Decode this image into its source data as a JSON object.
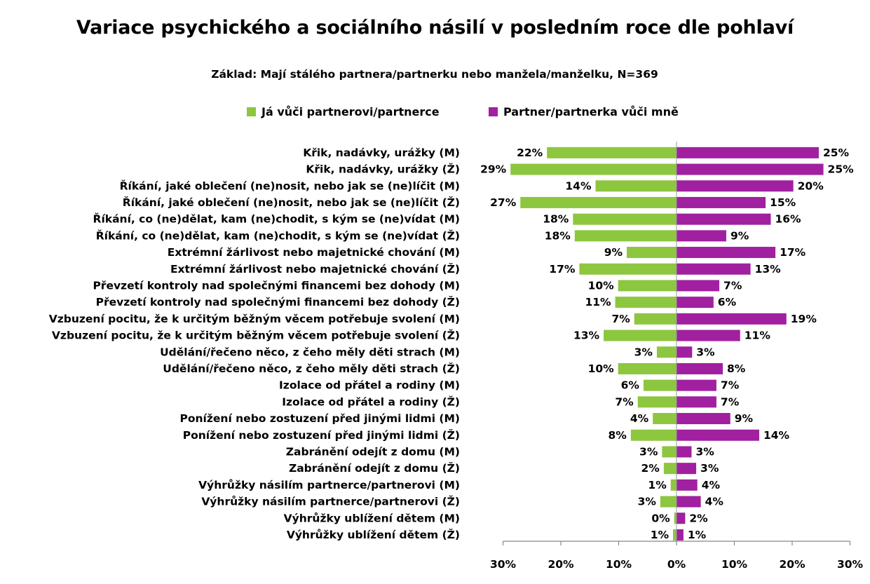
{
  "chart_data": {
    "type": "bar",
    "orientation": "horizontal-diverging",
    "title": "Variace psychického a sociálního násilí v posledním roce dle pohlaví",
    "subtitle": "Základ: Mají stálého partnera/partnerku nebo manžela/manželku, N=369",
    "xlim": [
      -30,
      30
    ],
    "xticks": [
      -30,
      -20,
      -10,
      0,
      10,
      20,
      30
    ],
    "xtick_labels": [
      "30%",
      "20%",
      "10%",
      "0%",
      "10%",
      "20%",
      "30%"
    ],
    "grid": false,
    "legend_position": "top",
    "categories": [
      "Křik, nadávky, urážky (M)",
      "Křik, nadávky, urážky (Ž)",
      "Říkání, jaké oblečení (ne)nosit, nebo jak se (ne)líčit (M)",
      "Říkání, jaké oblečení (ne)nosit, nebo jak se (ne)líčit (Ž)",
      "Říkání, co (ne)dělat, kam (ne)chodit, s kým se (ne)vídat (M)",
      "Říkání, co (ne)dělat, kam (ne)chodit, s kým se (ne)vídat (Ž)",
      "Extrémní žárlivost nebo majetnické chování (M)",
      "Extrémní žárlivost nebo majetnické chování (Ž)",
      "Převzetí kontroly nad společnými financemi bez dohody (M)",
      "Převzetí kontroly nad společnými financemi bez dohody (Ž)",
      "Vzbuzení pocitu, že k určitým běžným věcem potřebuje svolení (M)",
      "Vzbuzení pocitu, že k určitým běžným věcem potřebuje svolení (Ž)",
      "Udělání/řečeno něco, z čeho měly děti strach (M)",
      "Udělání/řečeno něco, z čeho měly děti strach (Ž)",
      "Izolace od přátel a rodiny (M)",
      "Izolace od přátel a rodiny (Ž)",
      "Ponížení nebo zostuzení před jinými lidmi (M)",
      "Ponížení nebo zostuzení před jinými lidmi (Ž)",
      "Zabránění odejít z domu (M)",
      "Zabránění odejít z domu (Ž)",
      "Výhrůžky násilím partnerce/partnerovi (M)",
      "Výhrůžky násilím partnerce/partnerovi (Ž)",
      "Výhrůžky ublížení dětem (M)",
      "Výhrůžky ublížení dětem (Ž)"
    ],
    "series": [
      {
        "name": "Já vůči partnerovi/partnerce",
        "color": "#8dc63f",
        "side": "left",
        "values": [
          22.4,
          28.7,
          14.0,
          27.0,
          17.9,
          17.6,
          8.6,
          16.8,
          10.1,
          10.6,
          7.3,
          12.6,
          3.4,
          10.1,
          5.7,
          6.7,
          4.1,
          7.9,
          2.5,
          2.2,
          1.0,
          2.8,
          0.4,
          0.6
        ],
        "labels": [
          "22%",
          "29%",
          "14%",
          "27%",
          "18%",
          "18%",
          "9%",
          "17%",
          "10%",
          "11%",
          "7%",
          "13%",
          "3%",
          "10%",
          "6%",
          "7%",
          "4%",
          "8%",
          "3%",
          "2%",
          "1%",
          "3%",
          "0%",
          "1%"
        ]
      },
      {
        "name": "Partner/partnerka vůči mně",
        "color": "#a020a0",
        "side": "right",
        "values": [
          24.6,
          25.4,
          20.2,
          15.4,
          16.3,
          8.6,
          17.1,
          12.8,
          7.4,
          6.4,
          19.0,
          11.0,
          2.7,
          8.0,
          6.9,
          6.9,
          9.3,
          14.3,
          2.6,
          3.4,
          3.6,
          4.2,
          1.5,
          1.2
        ],
        "labels": [
          "25%",
          "25%",
          "20%",
          "15%",
          "16%",
          "9%",
          "17%",
          "13%",
          "7%",
          "6%",
          "19%",
          "11%",
          "3%",
          "8%",
          "7%",
          "7%",
          "9%",
          "14%",
          "3%",
          "3%",
          "4%",
          "4%",
          "2%",
          "1%"
        ]
      }
    ]
  }
}
